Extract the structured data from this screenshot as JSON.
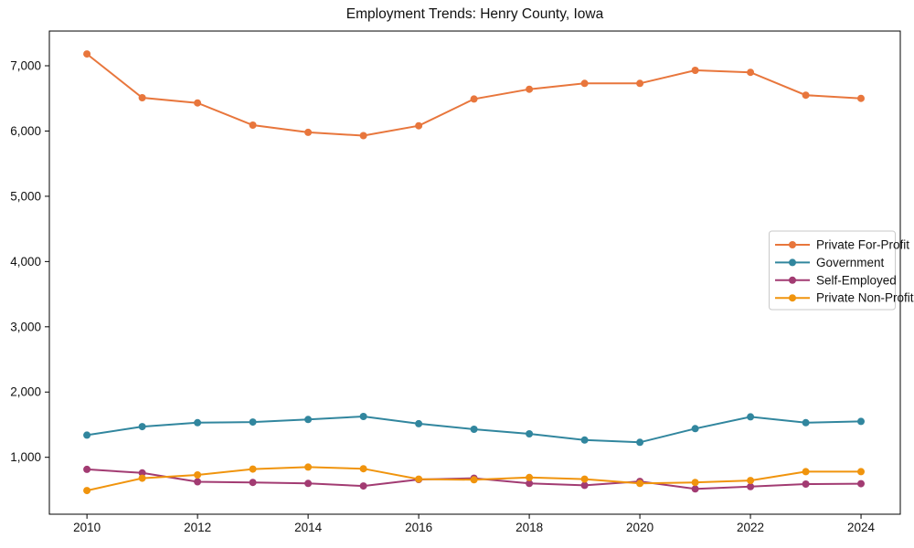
{
  "chart_data": {
    "type": "line",
    "title": "Employment Trends: Henry County, Iowa",
    "xlabel": "",
    "ylabel": "",
    "grid": false,
    "x": [
      2010,
      2011,
      2012,
      2013,
      2014,
      2015,
      2016,
      2017,
      2018,
      2019,
      2020,
      2021,
      2022,
      2023,
      2024
    ],
    "series": [
      {
        "name": "Private For-Profit",
        "color": "#E8763C",
        "values": [
          7180,
          6510,
          6430,
          6090,
          5980,
          5930,
          6080,
          6490,
          6640,
          6730,
          6730,
          6930,
          6900,
          6550,
          6500
        ]
      },
      {
        "name": "Government",
        "color": "#31869E",
        "values": [
          1340,
          1470,
          1530,
          1540,
          1580,
          1625,
          1515,
          1430,
          1360,
          1265,
          1230,
          1440,
          1620,
          1530,
          1550
        ]
      },
      {
        "name": "Self-Employed",
        "color": "#A23B72",
        "values": [
          815,
          760,
          625,
          615,
          600,
          560,
          660,
          680,
          600,
          570,
          630,
          515,
          550,
          590,
          595
        ]
      },
      {
        "name": "Private Non-Profit",
        "color": "#F0940D",
        "values": [
          490,
          680,
          730,
          820,
          850,
          825,
          665,
          655,
          690,
          665,
          600,
          615,
          645,
          780,
          780
        ]
      }
    ],
    "xticks": {
      "values": [
        2010,
        2012,
        2014,
        2016,
        2018,
        2020,
        2022,
        2024
      ],
      "labels": [
        "2010",
        "2012",
        "2014",
        "2016",
        "2018",
        "2020",
        "2022",
        "2024"
      ]
    },
    "yticks": {
      "values": [
        1000,
        2000,
        3000,
        4000,
        5000,
        6000,
        7000
      ],
      "labels": [
        "1,000",
        "2,000",
        "3,000",
        "4,000",
        "5,000",
        "6,000",
        "7,000"
      ]
    },
    "xlim": [
      2009.32,
      2024.71
    ],
    "ylim": [
      128,
      7532
    ],
    "legend": {
      "position": "center-right"
    }
  }
}
